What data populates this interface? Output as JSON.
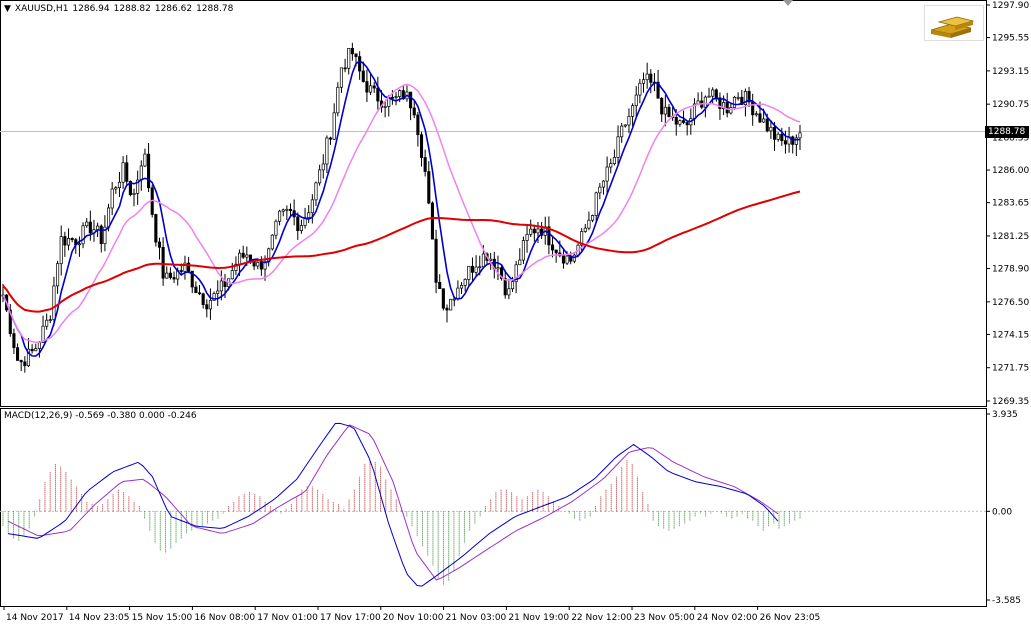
{
  "symbol_header": {
    "dropdown_glyph": "▼",
    "symbol": "XAUUSD,H1",
    "open": "1286.94",
    "high": "1288.82",
    "low": "1286.62",
    "close": "1288.78"
  },
  "current_price": "1288.78",
  "logo_icon": "gold-bars-icon",
  "macd_header": {
    "label": "MACD(12,26,9)",
    "values": "-0.569 -0.380 0.000 -0.246"
  },
  "colors": {
    "candle": "#000000",
    "fast_ma": "#0000cc",
    "slow_ma": "#ee82ee",
    "long_ma": "#dd0000",
    "macd_pos": "#b22222",
    "macd_neg": "#228b22",
    "macd_line": "#0000cc",
    "signal_line": "#9932cc"
  },
  "chart_data": [
    {
      "type": "candlestick",
      "title": "XAUUSD,H1",
      "y_axis_ticks": [
        "1297.90",
        "1295.55",
        "1293.15",
        "1290.75",
        "1288.35",
        "1286.00",
        "1283.65",
        "1281.25",
        "1278.90",
        "1276.50",
        "1274.15",
        "1271.75",
        "1269.35"
      ],
      "ylim": [
        1269.35,
        1297.9
      ],
      "x_axis_ticks": [
        "14 Nov 2017",
        "14 Nov 23:05",
        "15 Nov 15:00",
        "16 Nov 08:00",
        "17 Nov 01:00",
        "17 Nov 17:00",
        "20 Nov 10:00",
        "21 Nov 03:00",
        "21 Nov 19:00",
        "22 Nov 12:00",
        "23 Nov 05:00",
        "24 Nov 02:00",
        "26 Nov 23:05"
      ],
      "price_path": [
        {
          "t": 0,
          "v": 1277.0
        },
        {
          "t": 6,
          "v": 1272.0
        },
        {
          "t": 12,
          "v": 1273.0
        },
        {
          "t": 18,
          "v": 1275.5
        },
        {
          "t": 22,
          "v": 1281.0
        },
        {
          "t": 28,
          "v": 1281.0
        },
        {
          "t": 34,
          "v": 1282.0
        },
        {
          "t": 38,
          "v": 1281.0
        },
        {
          "t": 42,
          "v": 1284.5
        },
        {
          "t": 46,
          "v": 1286.0
        },
        {
          "t": 50,
          "v": 1284.0
        },
        {
          "t": 54,
          "v": 1287.5
        },
        {
          "t": 58,
          "v": 1282.0
        },
        {
          "t": 62,
          "v": 1278.0
        },
        {
          "t": 66,
          "v": 1278.5
        },
        {
          "t": 70,
          "v": 1279.0
        },
        {
          "t": 74,
          "v": 1277.5
        },
        {
          "t": 78,
          "v": 1276.5
        },
        {
          "t": 82,
          "v": 1277.0
        },
        {
          "t": 86,
          "v": 1278.0
        },
        {
          "t": 90,
          "v": 1279.5
        },
        {
          "t": 94,
          "v": 1280.0
        },
        {
          "t": 98,
          "v": 1279.0
        },
        {
          "t": 102,
          "v": 1280.0
        },
        {
          "t": 106,
          "v": 1282.5
        },
        {
          "t": 110,
          "v": 1283.0
        },
        {
          "t": 114,
          "v": 1282.0
        },
        {
          "t": 118,
          "v": 1283.5
        },
        {
          "t": 122,
          "v": 1286.0
        },
        {
          "t": 126,
          "v": 1289.0
        },
        {
          "t": 130,
          "v": 1293.5
        },
        {
          "t": 134,
          "v": 1294.5
        },
        {
          "t": 138,
          "v": 1292.5
        },
        {
          "t": 142,
          "v": 1291.5
        },
        {
          "t": 146,
          "v": 1291.0
        },
        {
          "t": 150,
          "v": 1291.0
        },
        {
          "t": 154,
          "v": 1291.5
        },
        {
          "t": 158,
          "v": 1290.5
        },
        {
          "t": 162,
          "v": 1286.0
        },
        {
          "t": 166,
          "v": 1278.5
        },
        {
          "t": 170,
          "v": 1276.0
        },
        {
          "t": 174,
          "v": 1277.5
        },
        {
          "t": 178,
          "v": 1278.5
        },
        {
          "t": 182,
          "v": 1279.5
        },
        {
          "t": 186,
          "v": 1280.0
        },
        {
          "t": 190,
          "v": 1279.0
        },
        {
          "t": 194,
          "v": 1277.0
        },
        {
          "t": 198,
          "v": 1279.5
        },
        {
          "t": 202,
          "v": 1281.5
        },
        {
          "t": 206,
          "v": 1282.0
        },
        {
          "t": 210,
          "v": 1281.0
        },
        {
          "t": 214,
          "v": 1280.0
        },
        {
          "t": 218,
          "v": 1279.5
        },
        {
          "t": 222,
          "v": 1281.0
        },
        {
          "t": 226,
          "v": 1283.0
        },
        {
          "t": 230,
          "v": 1285.0
        },
        {
          "t": 234,
          "v": 1286.5
        },
        {
          "t": 238,
          "v": 1289.0
        },
        {
          "t": 242,
          "v": 1290.5
        },
        {
          "t": 246,
          "v": 1292.5
        },
        {
          "t": 250,
          "v": 1292.0
        },
        {
          "t": 254,
          "v": 1290.0
        },
        {
          "t": 258,
          "v": 1289.5
        },
        {
          "t": 262,
          "v": 1289.0
        },
        {
          "t": 266,
          "v": 1290.5
        },
        {
          "t": 270,
          "v": 1291.5
        },
        {
          "t": 274,
          "v": 1291.0
        },
        {
          "t": 278,
          "v": 1290.5
        },
        {
          "t": 282,
          "v": 1291.5
        },
        {
          "t": 286,
          "v": 1291.0
        },
        {
          "t": 290,
          "v": 1290.0
        },
        {
          "t": 294,
          "v": 1289.0
        },
        {
          "t": 298,
          "v": 1288.0
        },
        {
          "t": 302,
          "v": 1288.0
        },
        {
          "t": 306,
          "v": 1288.78
        }
      ]
    },
    {
      "type": "macd",
      "title": "MACD(12,26,9)",
      "y_axis_ticks": [
        "3.935",
        "0.00",
        "-3.585"
      ],
      "ylim": [
        -3.585,
        3.935
      ],
      "histogram": [
        -0.6,
        -0.9,
        -1.1,
        -1.2,
        -1.0,
        -0.7,
        -0.2,
        0.5,
        1.2,
        1.6,
        1.9,
        1.8,
        1.6,
        1.3,
        1.0,
        0.7,
        0.4,
        0.3,
        0.2,
        0.3,
        0.5,
        0.7,
        0.9,
        0.8,
        0.6,
        0.4,
        0.2,
        -0.3,
        -0.8,
        -1.3,
        -1.6,
        -1.7,
        -1.5,
        -1.3,
        -1.1,
        -0.9,
        -0.8,
        -0.7,
        -0.6,
        -0.5,
        -0.4,
        -0.3,
        -0.1,
        0.2,
        0.4,
        0.6,
        0.7,
        0.8,
        0.7,
        0.6,
        0.4,
        0.2,
        0.1,
        -0.1,
        0.1,
        0.3,
        0.6,
        0.9,
        1.0,
        1.0,
        0.9,
        0.7,
        0.5,
        0.4,
        0.3,
        0.1,
        0.5,
        0.9,
        1.4,
        1.9,
        2.1,
        2.0,
        1.8,
        1.3,
        0.9,
        0.5,
        0.1,
        -0.2,
        -0.6,
        -1.0,
        -1.4,
        -1.8,
        -2.2,
        -2.7,
        -3.0,
        -2.8,
        -2.4,
        -1.8,
        -1.3,
        -0.8,
        -0.5,
        -0.2,
        0.2,
        0.5,
        0.8,
        0.9,
        0.9,
        0.8,
        0.6,
        0.5,
        0.6,
        0.8,
        0.9,
        0.8,
        0.6,
        0.4,
        0.2,
        0.0,
        -0.1,
        -0.3,
        -0.4,
        -0.3,
        -0.2,
        0.2,
        0.6,
        0.9,
        1.1,
        1.4,
        1.8,
        2.1,
        1.9,
        1.4,
        0.8,
        0.3,
        -0.4,
        -0.6,
        -0.7,
        -0.8,
        -0.7,
        -0.6,
        -0.5,
        -0.4,
        -0.2,
        -0.1,
        -0.2,
        -0.1,
        0.0,
        -0.1,
        -0.2,
        -0.3,
        -0.2,
        -0.1,
        -0.3,
        -0.4,
        -0.6,
        -0.8,
        -0.6,
        -0.5,
        -0.7,
        -0.6,
        -0.5,
        -0.4,
        -0.3
      ],
      "macd_line": [
        {
          "t": 0,
          "v": -0.9
        },
        {
          "t": 14,
          "v": -1.1
        },
        {
          "t": 26,
          "v": -0.4
        },
        {
          "t": 36,
          "v": 0.8
        },
        {
          "t": 48,
          "v": 1.6
        },
        {
          "t": 60,
          "v": 2.0
        },
        {
          "t": 66,
          "v": 1.4
        },
        {
          "t": 74,
          "v": -0.2
        },
        {
          "t": 86,
          "v": -0.6
        },
        {
          "t": 98,
          "v": -0.7
        },
        {
          "t": 110,
          "v": -0.2
        },
        {
          "t": 122,
          "v": 0.5
        },
        {
          "t": 132,
          "v": 1.3
        },
        {
          "t": 142,
          "v": 2.6
        },
        {
          "t": 150,
          "v": 3.6
        },
        {
          "t": 158,
          "v": 3.4
        },
        {
          "t": 166,
          "v": 2.0
        },
        {
          "t": 174,
          "v": -0.5
        },
        {
          "t": 182,
          "v": -2.5
        },
        {
          "t": 188,
          "v": -3.1
        },
        {
          "t": 196,
          "v": -2.6
        },
        {
          "t": 208,
          "v": -1.8
        },
        {
          "t": 220,
          "v": -0.9
        },
        {
          "t": 232,
          "v": -0.2
        },
        {
          "t": 244,
          "v": 0.2
        },
        {
          "t": 256,
          "v": 0.6
        },
        {
          "t": 268,
          "v": 1.3
        },
        {
          "t": 278,
          "v": 2.2
        },
        {
          "t": 286,
          "v": 2.7
        },
        {
          "t": 294,
          "v": 2.2
        },
        {
          "t": 302,
          "v": 1.6
        },
        {
          "t": 314,
          "v": 1.2
        },
        {
          "t": 326,
          "v": 1.0
        },
        {
          "t": 338,
          "v": 0.7
        },
        {
          "t": 346,
          "v": 0.2
        },
        {
          "t": 352,
          "v": -0.4
        }
      ],
      "signal_line": [
        {
          "t": 0,
          "v": -0.4
        },
        {
          "t": 14,
          "v": -1.0
        },
        {
          "t": 28,
          "v": -0.8
        },
        {
          "t": 40,
          "v": 0.3
        },
        {
          "t": 52,
          "v": 1.2
        },
        {
          "t": 62,
          "v": 1.3
        },
        {
          "t": 72,
          "v": 0.6
        },
        {
          "t": 84,
          "v": -0.6
        },
        {
          "t": 98,
          "v": -0.9
        },
        {
          "t": 112,
          "v": -0.5
        },
        {
          "t": 124,
          "v": 0.2
        },
        {
          "t": 136,
          "v": 0.8
        },
        {
          "t": 146,
          "v": 2.3
        },
        {
          "t": 156,
          "v": 3.5
        },
        {
          "t": 166,
          "v": 3.1
        },
        {
          "t": 176,
          "v": 1.2
        },
        {
          "t": 186,
          "v": -1.6
        },
        {
          "t": 196,
          "v": -2.8
        },
        {
          "t": 206,
          "v": -2.3
        },
        {
          "t": 218,
          "v": -1.6
        },
        {
          "t": 232,
          "v": -0.8
        },
        {
          "t": 246,
          "v": -0.2
        },
        {
          "t": 258,
          "v": 0.4
        },
        {
          "t": 272,
          "v": 1.3
        },
        {
          "t": 284,
          "v": 2.4
        },
        {
          "t": 294,
          "v": 2.6
        },
        {
          "t": 304,
          "v": 2.0
        },
        {
          "t": 318,
          "v": 1.4
        },
        {
          "t": 332,
          "v": 1.0
        },
        {
          "t": 344,
          "v": 0.4
        },
        {
          "t": 352,
          "v": -0.1
        }
      ]
    }
  ]
}
